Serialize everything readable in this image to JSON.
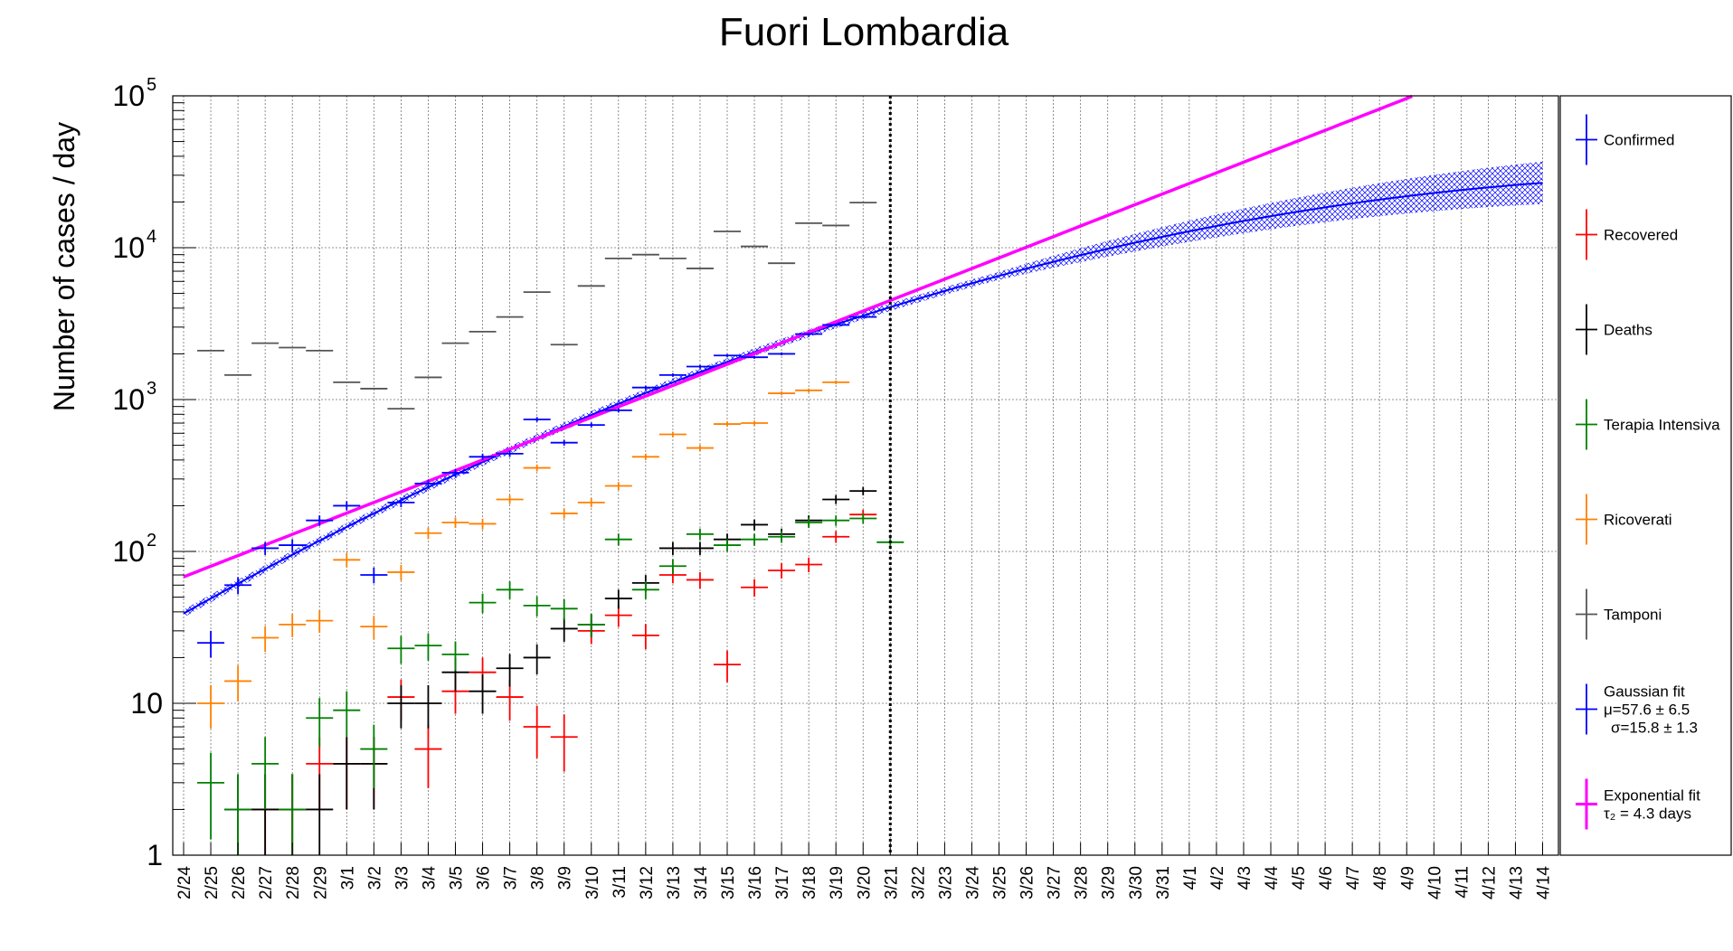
{
  "chart_data": {
    "type": "scatter",
    "title": "Fuori Lombardia",
    "ylabel": "Number of cases / day",
    "xlabel": "",
    "yscale": "log",
    "ylim": [
      1,
      100000
    ],
    "y_tick_labels": [
      {
        "value": 1,
        "base": "1",
        "exp": ""
      },
      {
        "value": 10,
        "base": "10",
        "exp": ""
      },
      {
        "value": 100,
        "base": "10",
        "exp": "2"
      },
      {
        "value": 1000,
        "base": "10",
        "exp": "3"
      },
      {
        "value": 10000,
        "base": "10",
        "exp": "4"
      },
      {
        "value": 100000,
        "base": "10",
        "exp": "5"
      }
    ],
    "categories": [
      "2/24",
      "2/25",
      "2/26",
      "2/27",
      "2/28",
      "2/29",
      "3/1",
      "3/2",
      "3/3",
      "3/4",
      "3/5",
      "3/6",
      "3/7",
      "3/8",
      "3/9",
      "3/10",
      "3/11",
      "3/12",
      "3/13",
      "3/14",
      "3/15",
      "3/16",
      "3/17",
      "3/18",
      "3/19",
      "3/20",
      "3/21",
      "3/22",
      "3/23",
      "3/24",
      "3/25",
      "3/26",
      "3/27",
      "3/28",
      "3/29",
      "3/30",
      "3/31",
      "4/1",
      "4/2",
      "4/3",
      "4/4",
      "4/5",
      "4/6",
      "4/7",
      "4/8",
      "4/9",
      "4/10",
      "4/11",
      "4/12",
      "4/13",
      "4/14"
    ],
    "grid": true,
    "vertical_marker_date": "3/21",
    "legend_position": "right",
    "series": [
      {
        "name": "Confirmed",
        "color": "#0000ff",
        "start": "2/25",
        "values": [
          25,
          60,
          105,
          110,
          160,
          200,
          70,
          210,
          280,
          330,
          420,
          440,
          740,
          520,
          680,
          850,
          1200,
          1450,
          1650,
          1950,
          1900,
          2000,
          2700,
          3100,
          3500
        ]
      },
      {
        "name": "Recovered",
        "color": "#ff0000",
        "start": "2/27",
        "values": [
          2,
          2,
          4,
          4,
          4,
          11,
          5,
          12,
          16,
          11,
          7,
          6,
          30,
          38,
          28,
          70,
          65,
          18,
          58,
          75,
          82,
          125,
          175
        ]
      },
      {
        "name": "Deaths",
        "color": "#000000",
        "start": "2/26",
        "values": [
          2,
          2,
          2,
          2,
          4,
          4,
          10,
          10,
          16,
          12,
          17,
          20,
          31,
          33,
          49,
          62,
          105,
          105,
          120,
          150,
          130,
          160,
          220,
          250
        ]
      },
      {
        "name": "Terapia Intensiva",
        "color": "#008000",
        "start": "2/25",
        "values": [
          3,
          2,
          4,
          2,
          8,
          9,
          5,
          23,
          24,
          21,
          46,
          56,
          44,
          42,
          33,
          120,
          56,
          80,
          130,
          110,
          120,
          125,
          155,
          160,
          165,
          115
        ]
      },
      {
        "name": "Ricoverati",
        "color": "#ff8000",
        "start": "2/25",
        "values": [
          10,
          14,
          27,
          33,
          35,
          88,
          32,
          73,
          132,
          155,
          152,
          220,
          355,
          178,
          210,
          270,
          420,
          590,
          480,
          690,
          700,
          1100,
          1150,
          1300
        ]
      },
      {
        "name": "Tamponi",
        "color": "#555555",
        "start": "2/25",
        "values": [
          2100,
          1450,
          2350,
          2200,
          2100,
          1300,
          1180,
          870,
          1400,
          2350,
          2800,
          3500,
          5100,
          2300,
          5600,
          8500,
          9000,
          8500,
          7300,
          12800,
          10200,
          7900,
          14500,
          14000,
          19800
        ]
      },
      {
        "name": "Gaussian fit",
        "color": "#0000ff",
        "param_lines": [
          "μ=57.6 ± 6.5",
          "σ=15.8 ± 1.3"
        ],
        "model": {
          "kind": "gaussian",
          "mu": 57.6,
          "sigma": 15.8,
          "peak": 30000,
          "x_start": 0,
          "x_end": 50,
          "band_relative": [
            0.0,
            0.38
          ]
        }
      },
      {
        "name": "Exponential fit",
        "color": "#ff00ff",
        "param_lines": [
          "τ₂ = 4.3 days"
        ],
        "model": {
          "kind": "exponential",
          "start_value": 68,
          "doubling_days": 4.3,
          "x_start": 0,
          "x_end": 45.2
        }
      }
    ],
    "legend": [
      {
        "label": "Confirmed",
        "color": "#0000ff"
      },
      {
        "label": "Recovered",
        "color": "#ff0000"
      },
      {
        "label": "Deaths",
        "color": "#000000"
      },
      {
        "label": "Terapia Intensiva",
        "color": "#008000"
      },
      {
        "label": "Ricoverati",
        "color": "#ff8000"
      },
      {
        "label": "Tamponi",
        "color": "#555555"
      },
      {
        "label": "Gaussian fit",
        "color": "#0000ff",
        "lines": [
          "μ=57.6 ± 6.5",
          "σ=15.8 ± 1.3"
        ]
      },
      {
        "label": "Exponential fit",
        "color": "#ff00ff",
        "lines": [
          "τ₂ = 4.3 days"
        ]
      }
    ]
  }
}
